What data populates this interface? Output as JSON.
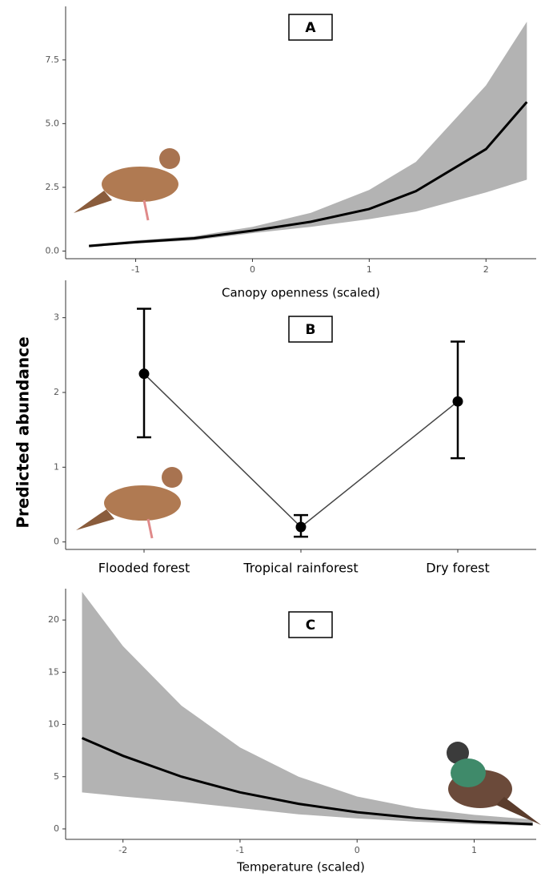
{
  "chart_data": [
    {
      "type": "line",
      "label": "A",
      "xlabel": "Canopy openness (scaled)",
      "x": [
        -1.4,
        -1.0,
        -0.5,
        0,
        0.5,
        1.0,
        1.4,
        2.0,
        2.35
      ],
      "values": [
        0.2,
        0.35,
        0.5,
        0.8,
        1.15,
        1.65,
        2.35,
        4.0,
        5.85
      ],
      "lower": [
        0.15,
        0.3,
        0.42,
        0.7,
        0.95,
        1.25,
        1.55,
        2.3,
        2.8
      ],
      "upper": [
        0.25,
        0.42,
        0.58,
        0.95,
        1.5,
        2.4,
        3.5,
        6.5,
        9.0
      ],
      "color": "#000000",
      "band_color": "#b3b3b3",
      "xlim": [
        -1.6,
        2.43
      ],
      "xticks": [
        -1,
        0,
        1,
        2
      ],
      "ylim": [
        -0.3,
        9.6
      ],
      "yticks": [
        {
          "value": 0,
          "label": "0.0"
        },
        {
          "value": 2.5,
          "label": "2.5"
        },
        {
          "value": 5,
          "label": "5.0"
        },
        {
          "value": 7.5,
          "label": "7.5"
        }
      ]
    },
    {
      "type": "pointrange",
      "label": "B",
      "ylabel": "Predicted abundance",
      "categories": [
        "Flooded forest",
        "Tropical rainforest",
        "Dry forest"
      ],
      "values": [
        2.25,
        0.2,
        1.88
      ],
      "lower": [
        1.4,
        0.07,
        1.12
      ],
      "upper": [
        3.12,
        0.36,
        2.68
      ],
      "color": "#000000",
      "ylim": [
        -0.1,
        3.5
      ],
      "yticks": [
        0,
        1,
        2,
        3
      ]
    },
    {
      "type": "line",
      "label": "C",
      "xlabel": "Temperature (scaled)",
      "x": [
        -2.35,
        -2.0,
        -1.5,
        -1.0,
        -0.5,
        0,
        0.5,
        1.0,
        1.5
      ],
      "values": [
        8.7,
        7.0,
        5.0,
        3.5,
        2.4,
        1.6,
        1.05,
        0.7,
        0.45
      ],
      "lower": [
        3.5,
        3.1,
        2.6,
        2.0,
        1.4,
        1.0,
        0.7,
        0.45,
        0.3
      ],
      "upper": [
        22.7,
        17.5,
        11.8,
        7.8,
        5.0,
        3.1,
        2.0,
        1.35,
        0.9
      ],
      "color": "#000000",
      "band_color": "#b3b3b3",
      "xlim": [
        -2.49,
        1.53
      ],
      "xticks": [
        -2,
        -1,
        0,
        1
      ],
      "ylim": [
        -1,
        23
      ],
      "yticks": [
        0,
        5,
        10,
        15,
        20
      ]
    }
  ]
}
